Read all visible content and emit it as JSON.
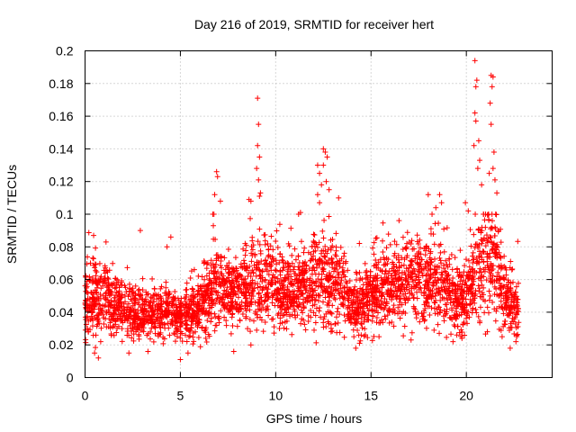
{
  "chart_data": {
    "type": "scatter",
    "title": "Day 216 of 2019, SRMTID for receiver hert",
    "xlabel": "GPS time / hours",
    "ylabel": "SRMTID / TECUs",
    "xlim": [
      0,
      24.5
    ],
    "ylim": [
      0,
      0.2
    ],
    "xticks": [
      0,
      5,
      10,
      15,
      20
    ],
    "xtick_labels": [
      "0",
      "5",
      "10",
      "15",
      "20"
    ],
    "yticks": [
      0,
      0.02,
      0.04,
      0.06,
      0.08,
      0.1,
      0.12,
      0.14,
      0.16,
      0.18,
      0.2
    ],
    "ytick_labels": [
      "0",
      "0.02",
      "0.04",
      "0.06",
      "0.08",
      "0.1",
      "0.12",
      "0.14",
      "0.16",
      "0.18",
      "0.2"
    ],
    "grid": true,
    "marker": "+",
    "color": "#ff0000",
    "x_range_data": [
      0.0,
      22.75
    ],
    "profile": {
      "x": [
        0.0,
        1.0,
        2.0,
        3.0,
        4.0,
        5.0,
        6.0,
        6.8,
        7.5,
        8.5,
        9.0,
        10.0,
        11.0,
        12.0,
        12.5,
        13.5,
        14.0,
        15.0,
        16.0,
        17.0,
        18.0,
        19.0,
        19.5,
        20.0,
        20.5,
        21.0,
        21.5,
        22.0,
        22.75
      ],
      "mean": [
        0.048,
        0.05,
        0.042,
        0.038,
        0.042,
        0.036,
        0.042,
        0.058,
        0.052,
        0.055,
        0.062,
        0.055,
        0.052,
        0.06,
        0.062,
        0.052,
        0.042,
        0.05,
        0.058,
        0.06,
        0.058,
        0.055,
        0.045,
        0.05,
        0.065,
        0.068,
        0.07,
        0.048,
        0.04
      ],
      "spread": [
        0.014,
        0.014,
        0.011,
        0.01,
        0.011,
        0.01,
        0.012,
        0.018,
        0.014,
        0.016,
        0.02,
        0.017,
        0.016,
        0.02,
        0.022,
        0.015,
        0.011,
        0.014,
        0.016,
        0.016,
        0.018,
        0.016,
        0.013,
        0.016,
        0.022,
        0.024,
        0.022,
        0.014,
        0.012
      ]
    },
    "samples_per_hour": 150,
    "notable_points": [
      {
        "x": 20.45,
        "y": 0.194
      },
      {
        "x": 20.55,
        "y": 0.182
      },
      {
        "x": 20.5,
        "y": 0.178
      },
      {
        "x": 21.3,
        "y": 0.185
      },
      {
        "x": 21.4,
        "y": 0.184
      },
      {
        "x": 21.35,
        "y": 0.178
      },
      {
        "x": 21.25,
        "y": 0.168
      },
      {
        "x": 20.45,
        "y": 0.162
      },
      {
        "x": 20.5,
        "y": 0.157
      },
      {
        "x": 21.3,
        "y": 0.155
      },
      {
        "x": 20.65,
        "y": 0.145
      },
      {
        "x": 20.4,
        "y": 0.142
      },
      {
        "x": 21.45,
        "y": 0.138
      },
      {
        "x": 20.7,
        "y": 0.133
      },
      {
        "x": 20.6,
        "y": 0.128
      },
      {
        "x": 21.4,
        "y": 0.128
      },
      {
        "x": 21.2,
        "y": 0.125
      },
      {
        "x": 21.5,
        "y": 0.121
      },
      {
        "x": 20.8,
        "y": 0.118
      },
      {
        "x": 21.6,
        "y": 0.113
      },
      {
        "x": 9.05,
        "y": 0.171
      },
      {
        "x": 9.1,
        "y": 0.155
      },
      {
        "x": 9.05,
        "y": 0.142
      },
      {
        "x": 9.15,
        "y": 0.135
      },
      {
        "x": 9.0,
        "y": 0.128
      },
      {
        "x": 9.1,
        "y": 0.121
      },
      {
        "x": 9.2,
        "y": 0.113
      },
      {
        "x": 9.15,
        "y": 0.111
      },
      {
        "x": 8.6,
        "y": 0.109
      },
      {
        "x": 8.7,
        "y": 0.108
      },
      {
        "x": 12.5,
        "y": 0.14
      },
      {
        "x": 12.6,
        "y": 0.138
      },
      {
        "x": 12.7,
        "y": 0.135
      },
      {
        "x": 12.5,
        "y": 0.13
      },
      {
        "x": 12.2,
        "y": 0.13
      },
      {
        "x": 12.3,
        "y": 0.125
      },
      {
        "x": 12.4,
        "y": 0.118
      },
      {
        "x": 12.65,
        "y": 0.12
      },
      {
        "x": 12.2,
        "y": 0.112
      },
      {
        "x": 12.3,
        "y": 0.107
      },
      {
        "x": 12.8,
        "y": 0.115
      },
      {
        "x": 13.3,
        "y": 0.11
      },
      {
        "x": 11.2,
        "y": 0.1
      },
      {
        "x": 11.3,
        "y": 0.101
      },
      {
        "x": 6.9,
        "y": 0.126
      },
      {
        "x": 6.95,
        "y": 0.123
      },
      {
        "x": 6.8,
        "y": 0.112
      },
      {
        "x": 7.1,
        "y": 0.108
      },
      {
        "x": 6.7,
        "y": 0.1
      },
      {
        "x": 18.0,
        "y": 0.112
      },
      {
        "x": 18.6,
        "y": 0.112
      },
      {
        "x": 18.7,
        "y": 0.107
      },
      {
        "x": 18.2,
        "y": 0.1
      },
      {
        "x": 18.4,
        "y": 0.104
      },
      {
        "x": 19.95,
        "y": 0.107
      },
      {
        "x": 20.1,
        "y": 0.102
      },
      {
        "x": 0.45,
        "y": 0.087
      },
      {
        "x": 1.1,
        "y": 0.083
      },
      {
        "x": 2.9,
        "y": 0.09
      },
      {
        "x": 4.5,
        "y": 0.086
      },
      {
        "x": 4.3,
        "y": 0.08
      },
      {
        "x": 0.5,
        "y": 0.015
      },
      {
        "x": 0.7,
        "y": 0.012
      },
      {
        "x": 2.3,
        "y": 0.015
      },
      {
        "x": 5.0,
        "y": 0.011
      },
      {
        "x": 5.4,
        "y": 0.015
      },
      {
        "x": 3.3,
        "y": 0.016
      },
      {
        "x": 14.2,
        "y": 0.018
      },
      {
        "x": 14.4,
        "y": 0.021
      },
      {
        "x": 14.1,
        "y": 0.025
      },
      {
        "x": 19.3,
        "y": 0.022
      },
      {
        "x": 19.5,
        "y": 0.026
      },
      {
        "x": 7.8,
        "y": 0.016
      },
      {
        "x": 21.1,
        "y": 0.028
      },
      {
        "x": 22.3,
        "y": 0.018
      },
      {
        "x": 22.6,
        "y": 0.022
      },
      {
        "x": 8.7,
        "y": 0.02
      },
      {
        "x": 17.1,
        "y": 0.023
      }
    ]
  }
}
